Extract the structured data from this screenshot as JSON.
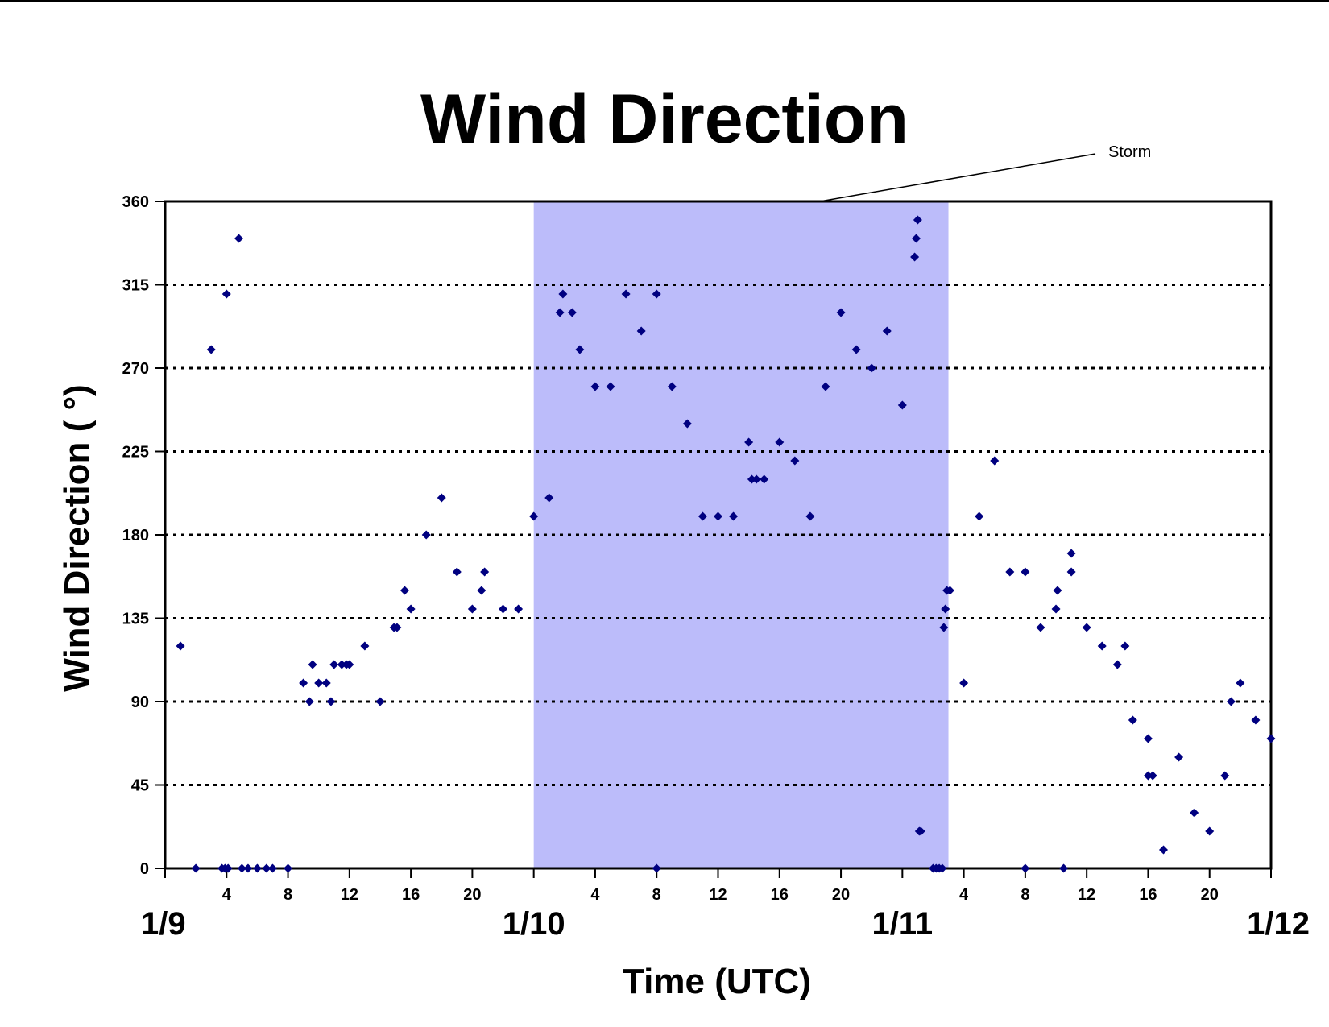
{
  "chart_data": {
    "type": "scatter",
    "title": "Wind Direction",
    "xlabel": "Time (UTC)",
    "ylabel": "Wind Direction ( °)",
    "xlim": [
      "1/9 00:00",
      "1/12 00:00"
    ],
    "ylim": [
      0,
      360
    ],
    "y_ticks": [
      0,
      45,
      90,
      135,
      180,
      225,
      270,
      315,
      360
    ],
    "y_tick_labels": [
      "0",
      "45",
      "90",
      "135",
      "180",
      "225",
      "270",
      "315",
      "360"
    ],
    "x_hour_tick_labels": [
      "4",
      "8",
      "12",
      "16",
      "20"
    ],
    "day_labels": [
      "1/9",
      "1/10",
      "1/11",
      "1/12"
    ],
    "grid": "horizontal dotted",
    "marker_color": "#000080",
    "shade_color": "#bcbcfa",
    "storm_period": {
      "start": "1/10 00:00",
      "end": "1/11 03:00",
      "label": "Storm"
    },
    "series": [
      {
        "points": [
          [
            "1/9 01:00",
            120
          ],
          [
            "1/9 02:00",
            0
          ],
          [
            "1/9 03:00",
            280
          ],
          [
            "1/9 03:42",
            0
          ],
          [
            "1/9 03:54",
            0
          ],
          [
            "1/9 04:00",
            310
          ],
          [
            "1/9 04:06",
            0
          ],
          [
            "1/9 04:48",
            340
          ],
          [
            "1/9 05:00",
            0
          ],
          [
            "1/9 05:24",
            0
          ],
          [
            "1/9 06:00",
            0
          ],
          [
            "1/9 06:36",
            0
          ],
          [
            "1/9 07:00",
            0
          ],
          [
            "1/9 08:00",
            0
          ],
          [
            "1/9 09:00",
            100
          ],
          [
            "1/9 09:24",
            90
          ],
          [
            "1/9 09:36",
            110
          ],
          [
            "1/9 10:00",
            100
          ],
          [
            "1/9 10:30",
            100
          ],
          [
            "1/9 10:48",
            90
          ],
          [
            "1/9 11:00",
            110
          ],
          [
            "1/9 11:30",
            110
          ],
          [
            "1/9 11:48",
            110
          ],
          [
            "1/9 12:00",
            110
          ],
          [
            "1/9 13:00",
            120
          ],
          [
            "1/9 14:00",
            90
          ],
          [
            "1/9 14:54",
            130
          ],
          [
            "1/9 15:06",
            130
          ],
          [
            "1/9 15:36",
            150
          ],
          [
            "1/9 16:00",
            140
          ],
          [
            "1/9 17:00",
            180
          ],
          [
            "1/9 18:00",
            200
          ],
          [
            "1/9 19:00",
            160
          ],
          [
            "1/9 20:00",
            140
          ],
          [
            "1/9 20:36",
            150
          ],
          [
            "1/9 20:48",
            160
          ],
          [
            "1/9 22:00",
            140
          ],
          [
            "1/9 23:00",
            140
          ],
          [
            "1/10 00:00",
            190
          ],
          [
            "1/10 01:00",
            200
          ],
          [
            "1/10 01:42",
            300
          ],
          [
            "1/10 01:54",
            310
          ],
          [
            "1/10 02:30",
            300
          ],
          [
            "1/10 03:00",
            280
          ],
          [
            "1/10 04:00",
            260
          ],
          [
            "1/10 05:00",
            260
          ],
          [
            "1/10 06:00",
            310
          ],
          [
            "1/10 07:00",
            290
          ],
          [
            "1/10 08:00",
            310
          ],
          [
            "1/10 08:00",
            0
          ],
          [
            "1/10 09:00",
            260
          ],
          [
            "1/10 10:00",
            240
          ],
          [
            "1/10 11:00",
            190
          ],
          [
            "1/10 12:00",
            190
          ],
          [
            "1/10 13:00",
            190
          ],
          [
            "1/10 14:00",
            230
          ],
          [
            "1/10 14:12",
            210
          ],
          [
            "1/10 14:30",
            210
          ],
          [
            "1/10 15:00",
            210
          ],
          [
            "1/10 16:00",
            230
          ],
          [
            "1/10 17:00",
            220
          ],
          [
            "1/10 18:00",
            190
          ],
          [
            "1/10 19:00",
            260
          ],
          [
            "1/10 20:00",
            300
          ],
          [
            "1/10 21:00",
            280
          ],
          [
            "1/10 22:00",
            270
          ],
          [
            "1/10 23:00",
            290
          ],
          [
            "1/11 00:00",
            250
          ],
          [
            "1/11 00:48",
            330
          ],
          [
            "1/11 00:54",
            340
          ],
          [
            "1/11 01:00",
            350
          ],
          [
            "1/11 01:06",
            20
          ],
          [
            "1/11 01:12",
            20
          ],
          [
            "1/11 02:00",
            0
          ],
          [
            "1/11 02:12",
            0
          ],
          [
            "1/11 02:24",
            0
          ],
          [
            "1/11 02:36",
            0
          ],
          [
            "1/11 02:42",
            130
          ],
          [
            "1/11 02:48",
            140
          ],
          [
            "1/11 02:54",
            150
          ],
          [
            "1/11 03:06",
            150
          ],
          [
            "1/11 04:00",
            100
          ],
          [
            "1/11 05:00",
            190
          ],
          [
            "1/11 06:00",
            220
          ],
          [
            "1/11 07:00",
            160
          ],
          [
            "1/11 08:00",
            160
          ],
          [
            "1/11 08:00",
            0
          ],
          [
            "1/11 09:00",
            130
          ],
          [
            "1/11 10:00",
            140
          ],
          [
            "1/11 10:06",
            150
          ],
          [
            "1/11 10:30",
            0
          ],
          [
            "1/11 11:00",
            170
          ],
          [
            "1/11 11:00",
            160
          ],
          [
            "1/11 12:00",
            130
          ],
          [
            "1/11 13:00",
            120
          ],
          [
            "1/11 14:00",
            110
          ],
          [
            "1/11 14:30",
            120
          ],
          [
            "1/11 15:00",
            80
          ],
          [
            "1/11 16:00",
            70
          ],
          [
            "1/11 16:00",
            50
          ],
          [
            "1/11 16:18",
            50
          ],
          [
            "1/11 17:00",
            10
          ],
          [
            "1/11 18:00",
            60
          ],
          [
            "1/11 19:00",
            30
          ],
          [
            "1/11 20:00",
            20
          ],
          [
            "1/11 21:00",
            50
          ],
          [
            "1/11 21:24",
            90
          ],
          [
            "1/11 22:00",
            100
          ],
          [
            "1/11 23:00",
            80
          ],
          [
            "1/12 00:00",
            70
          ]
        ]
      }
    ]
  }
}
